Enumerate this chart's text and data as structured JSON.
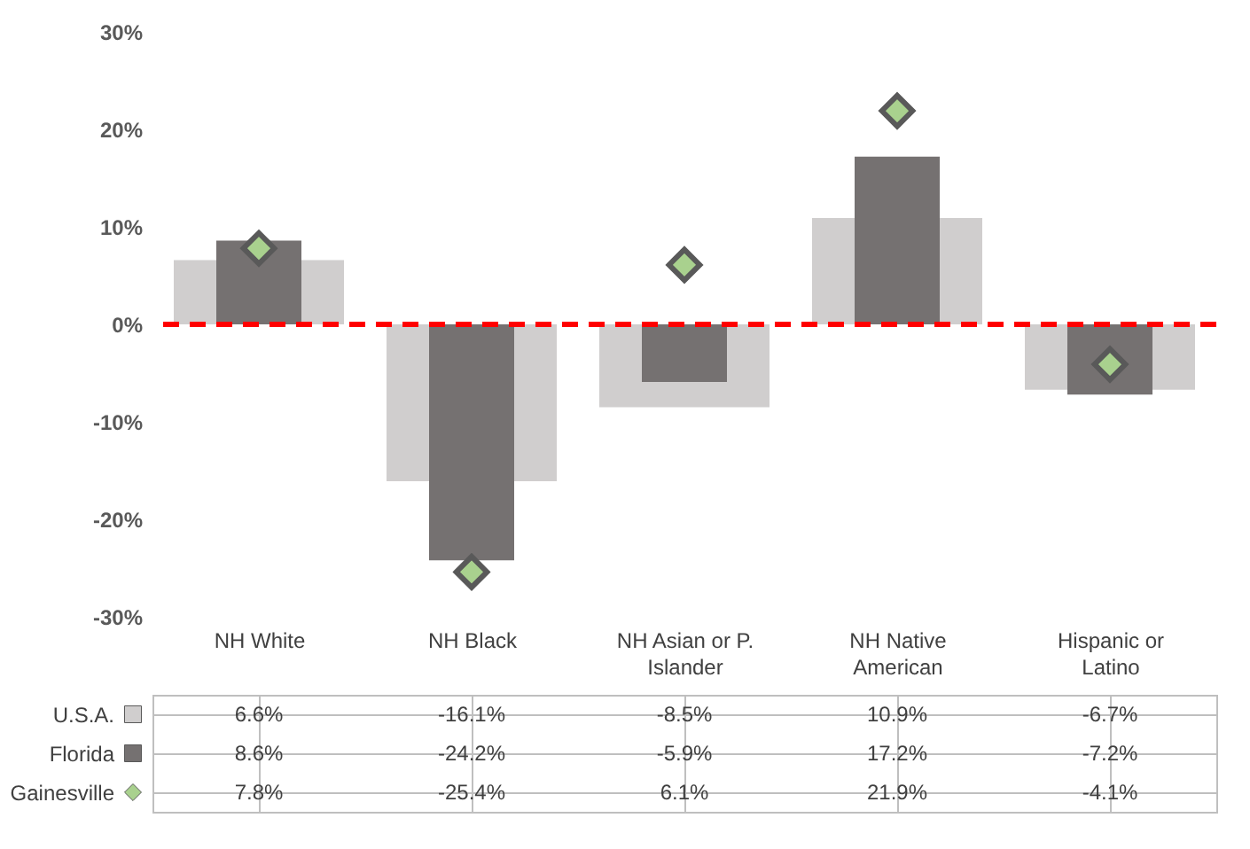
{
  "chart_data": {
    "type": "bar",
    "categories": [
      "NH White",
      "NH Black",
      "NH Asian or P. Islander",
      "NH Native American",
      "Hispanic or Latino"
    ],
    "series": [
      {
        "name": "U.S.A.",
        "color": "#d0cece",
        "values": [
          6.6,
          -16.1,
          -8.5,
          10.9,
          -6.7
        ],
        "value_labels": [
          "6.6%",
          "-16.1%",
          "-8.5%",
          "10.9%",
          "-6.7%"
        ]
      },
      {
        "name": "Florida",
        "color": "#757171",
        "values": [
          8.6,
          -24.2,
          -5.9,
          17.2,
          -7.2
        ],
        "value_labels": [
          "8.6%",
          "-24.2%",
          "-5.9%",
          "17.2%",
          "-7.2%"
        ]
      },
      {
        "name": "Gainesville",
        "type": "scatter",
        "marker": "diamond",
        "color": "#a9d18e",
        "values": [
          7.8,
          -25.4,
          6.1,
          21.9,
          -4.1
        ],
        "value_labels": [
          "7.8%",
          "-25.4%",
          "6.1%",
          "21.9%",
          "-4.1%"
        ]
      }
    ],
    "ylim": [
      -30,
      30
    ],
    "yticks": [
      {
        "value": -30,
        "label": "-30%"
      },
      {
        "value": -20,
        "label": "-20%"
      },
      {
        "value": -10,
        "label": "-10%"
      },
      {
        "value": 0,
        "label": "0%"
      },
      {
        "value": 10,
        "label": "10%"
      },
      {
        "value": 20,
        "label": "20%"
      },
      {
        "value": 30,
        "label": "30%"
      }
    ],
    "legend": "bottom left",
    "ref_lines": [
      {
        "axis": "y",
        "value": 0,
        "color": "#ff0000",
        "line_style": "dashed"
      }
    ]
  }
}
